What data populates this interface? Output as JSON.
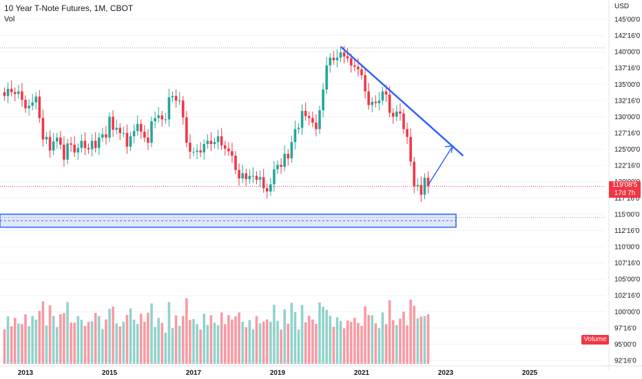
{
  "header": {
    "title": "10 Year T-Note Futures, 1M, CBOT",
    "volume_label": "Vol"
  },
  "price_axis": {
    "currency": "USD",
    "ticks": [
      "145'00'0",
      "142'16'0",
      "140'00'0",
      "137'16'0",
      "135'00'0",
      "132'16'0",
      "130'00'0",
      "127'16'0",
      "125'00'0",
      "122'16'0",
      "120'00'0",
      "117'16'0",
      "115'00'0",
      "112'16'0",
      "110'00'0",
      "107'16'0",
      "105'00'0",
      "102'16'0",
      "100'00'0",
      "97'16'0",
      "95'00'0",
      "92'16'0"
    ]
  },
  "time_axis": {
    "labels": [
      "2013",
      "2015",
      "2017",
      "2019",
      "2021",
      "2023",
      "2025"
    ]
  },
  "last_price": {
    "value": "119'08'5",
    "countdown": "17d 7h"
  },
  "volume_badge": "Volume",
  "colors": {
    "up": "#26a69a",
    "down": "#f23645",
    "drawing": "#2962ff",
    "zone_fill": "#c5d3fb"
  },
  "chart_data": {
    "type": "candlestick",
    "title": "10 Year T-Note Futures, 1M, CBOT",
    "ylim": [
      92.5,
      147.0
    ],
    "xlim": [
      "2012-07",
      "2026-07"
    ],
    "last_close": 119.27,
    "support_zone": [
      113.0,
      115.0
    ],
    "resistance_line": [
      [
        "2020-07",
        140.8
      ],
      [
        "2023-06",
        124.0
      ]
    ],
    "projection_arrow": [
      [
        "2022-08",
        119.5
      ],
      [
        "2023-03",
        125.5
      ]
    ],
    "monthly_close": [
      [
        "2012-07",
        133.2
      ],
      [
        "2012-08",
        134.3
      ],
      [
        "2012-09",
        133.8
      ],
      [
        "2012-10",
        133.5
      ],
      [
        "2012-11",
        133.9
      ],
      [
        "2012-12",
        132.6
      ],
      [
        "2013-01",
        131.3
      ],
      [
        "2013-02",
        131.7
      ],
      [
        "2013-03",
        132.2
      ],
      [
        "2013-04",
        133.1
      ],
      [
        "2013-05",
        129.8
      ],
      [
        "2013-06",
        126.5
      ],
      [
        "2013-07",
        126.9
      ],
      [
        "2013-08",
        124.8
      ],
      [
        "2013-09",
        126.2
      ],
      [
        "2013-10",
        126.8
      ],
      [
        "2013-11",
        125.7
      ],
      [
        "2013-12",
        123.4
      ],
      [
        "2014-01",
        125.9
      ],
      [
        "2014-02",
        125.7
      ],
      [
        "2014-03",
        124.5
      ],
      [
        "2014-04",
        125.2
      ],
      [
        "2014-05",
        126.3
      ],
      [
        "2014-06",
        125.2
      ],
      [
        "2014-07",
        125.0
      ],
      [
        "2014-08",
        126.3
      ],
      [
        "2014-09",
        125.2
      ],
      [
        "2014-10",
        126.8
      ],
      [
        "2014-11",
        127.3
      ],
      [
        "2014-12",
        126.8
      ],
      [
        "2015-01",
        130.0
      ],
      [
        "2015-02",
        128.0
      ],
      [
        "2015-03",
        128.3
      ],
      [
        "2015-04",
        127.5
      ],
      [
        "2015-05",
        127.5
      ],
      [
        "2015-06",
        125.4
      ],
      [
        "2015-07",
        127.0
      ],
      [
        "2015-08",
        127.8
      ],
      [
        "2015-09",
        128.9
      ],
      [
        "2015-10",
        127.7
      ],
      [
        "2015-11",
        126.8
      ],
      [
        "2015-12",
        126.0
      ],
      [
        "2016-01",
        129.3
      ],
      [
        "2016-02",
        129.8
      ],
      [
        "2016-03",
        130.2
      ],
      [
        "2016-04",
        129.6
      ],
      [
        "2016-05",
        129.6
      ],
      [
        "2016-06",
        133.0
      ],
      [
        "2016-07",
        133.2
      ],
      [
        "2016-08",
        132.5
      ],
      [
        "2016-09",
        132.5
      ],
      [
        "2016-10",
        129.9
      ],
      [
        "2016-11",
        126.0
      ],
      [
        "2016-12",
        124.6
      ],
      [
        "2017-01",
        124.6
      ],
      [
        "2017-02",
        124.8
      ],
      [
        "2017-03",
        124.5
      ],
      [
        "2017-04",
        125.8
      ],
      [
        "2017-05",
        126.3
      ],
      [
        "2017-06",
        125.8
      ],
      [
        "2017-07",
        126.1
      ],
      [
        "2017-08",
        127.0
      ],
      [
        "2017-09",
        125.6
      ],
      [
        "2017-10",
        125.1
      ],
      [
        "2017-11",
        124.7
      ],
      [
        "2017-12",
        124.0
      ],
      [
        "2018-01",
        121.8
      ],
      [
        "2018-02",
        120.5
      ],
      [
        "2018-03",
        121.3
      ],
      [
        "2018-04",
        120.4
      ],
      [
        "2018-05",
        120.9
      ],
      [
        "2018-06",
        120.9
      ],
      [
        "2018-07",
        120.3
      ],
      [
        "2018-08",
        120.7
      ],
      [
        "2018-09",
        119.0
      ],
      [
        "2018-10",
        118.5
      ],
      [
        "2018-11",
        119.6
      ],
      [
        "2018-12",
        121.9
      ],
      [
        "2019-01",
        122.6
      ],
      [
        "2019-02",
        122.3
      ],
      [
        "2019-03",
        124.3
      ],
      [
        "2019-04",
        123.6
      ],
      [
        "2019-05",
        126.1
      ],
      [
        "2019-06",
        128.1
      ],
      [
        "2019-07",
        128.3
      ],
      [
        "2019-08",
        130.9
      ],
      [
        "2019-09",
        130.1
      ],
      [
        "2019-10",
        129.8
      ],
      [
        "2019-11",
        129.1
      ],
      [
        "2019-12",
        128.1
      ],
      [
        "2020-01",
        131.0
      ],
      [
        "2020-02",
        134.2
      ],
      [
        "2020-03",
        137.9
      ],
      [
        "2020-04",
        139.1
      ],
      [
        "2020-05",
        138.7
      ],
      [
        "2020-06",
        139.1
      ],
      [
        "2020-07",
        139.9
      ],
      [
        "2020-08",
        139.3
      ],
      [
        "2020-09",
        139.0
      ],
      [
        "2020-10",
        137.9
      ],
      [
        "2020-11",
        137.7
      ],
      [
        "2020-12",
        137.3
      ],
      [
        "2021-01",
        136.4
      ],
      [
        "2021-02",
        133.9
      ],
      [
        "2021-03",
        131.8
      ],
      [
        "2021-04",
        132.3
      ],
      [
        "2021-05",
        132.1
      ],
      [
        "2021-06",
        132.5
      ],
      [
        "2021-07",
        133.9
      ],
      [
        "2021-08",
        133.4
      ],
      [
        "2021-09",
        130.6
      ],
      [
        "2021-10",
        130.0
      ],
      [
        "2021-11",
        130.8
      ],
      [
        "2021-12",
        130.5
      ],
      [
        "2022-01",
        128.1
      ],
      [
        "2022-02",
        126.9
      ],
      [
        "2022-03",
        123.1
      ],
      [
        "2022-04",
        119.3
      ],
      [
        "2022-05",
        119.5
      ],
      [
        "2022-06",
        118.0
      ],
      [
        "2022-07",
        120.6
      ],
      [
        "2022-08",
        119.27
      ]
    ],
    "volume_scale": "relative"
  }
}
